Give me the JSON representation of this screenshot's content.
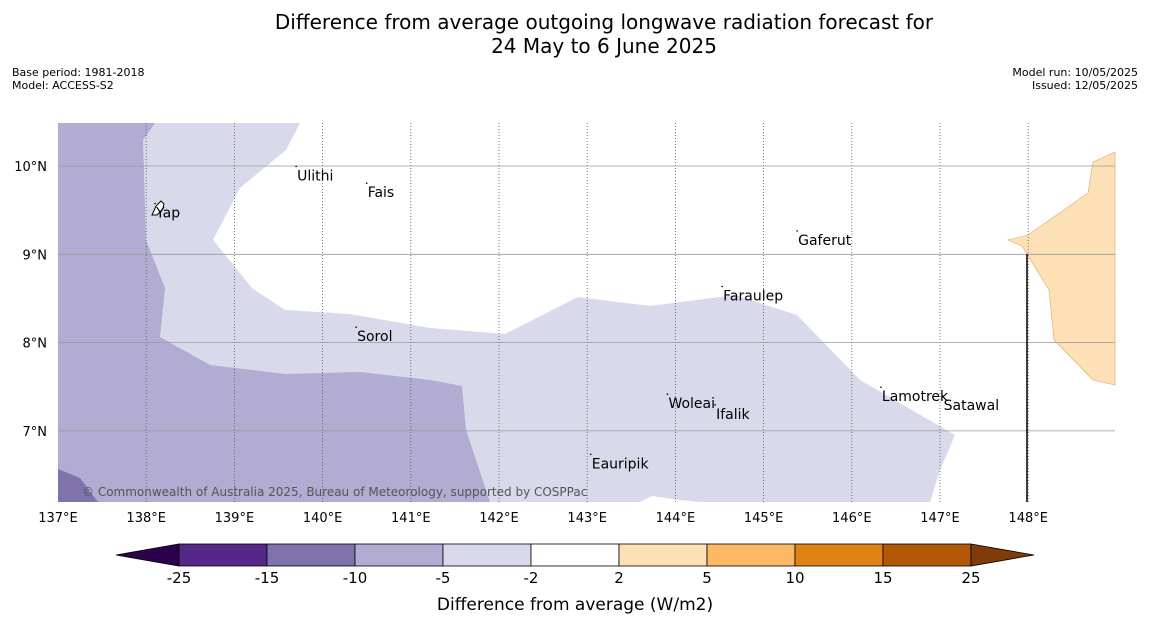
{
  "title": {
    "line1": "Difference from average outgoing longwave radiation forecast for",
    "line2": "24 May to 6 June 2025"
  },
  "meta_left": {
    "base_period": "Base period: 1981-2018",
    "model": "Model: ACCESS-S2"
  },
  "meta_right": {
    "model_run": "Model run: 10/05/2025",
    "issued": "Issued: 12/05/2025"
  },
  "map": {
    "lon_range": [
      137,
      149
    ],
    "lat_range": [
      6.2,
      10.5
    ],
    "lon_ticks": [
      "137°E",
      "138°E",
      "139°E",
      "140°E",
      "141°E",
      "142°E",
      "143°E",
      "144°E",
      "145°E",
      "146°E",
      "147°E",
      "148°E"
    ],
    "lat_ticks": [
      "10°N",
      "9°N",
      "8°N",
      "7°N"
    ],
    "places": [
      {
        "name": "Yap",
        "lon": 138.1,
        "lat": 9.53
      },
      {
        "name": "Ulithi",
        "lon": 139.7,
        "lat": 9.95
      },
      {
        "name": "Fais",
        "lon": 140.5,
        "lat": 9.76
      },
      {
        "name": "Gaferut",
        "lon": 145.38,
        "lat": 9.22
      },
      {
        "name": "Faraulep",
        "lon": 144.53,
        "lat": 8.59
      },
      {
        "name": "Sorol",
        "lon": 140.38,
        "lat": 8.13
      },
      {
        "name": "Lamotrek",
        "lon": 146.33,
        "lat": 7.45
      },
      {
        "name": "Satawal",
        "lon": 147.03,
        "lat": 7.35
      },
      {
        "name": "Woleai",
        "lon": 143.91,
        "lat": 7.37
      },
      {
        "name": "Ifalik",
        "lon": 144.45,
        "lat": 7.25
      },
      {
        "name": "Eauripik",
        "lon": 143.04,
        "lat": 6.69
      }
    ],
    "copyright": "© Commonwealth of Australia 2025, Bureau of Meteorology, supported by COSPPac"
  },
  "colorbar": {
    "title": "Difference from average (W/m2)",
    "labels": [
      "-25",
      "-15",
      "-10",
      "-5",
      "-2",
      "2",
      "5",
      "10",
      "15",
      "25"
    ],
    "colors": [
      "#2d004b",
      "#542788",
      "#8073ac",
      "#b2abd2",
      "#d8daeb",
      "#ffffff",
      "#fee0b6",
      "#fdb863",
      "#e08214",
      "#b35806",
      "#7f3b08"
    ]
  }
}
